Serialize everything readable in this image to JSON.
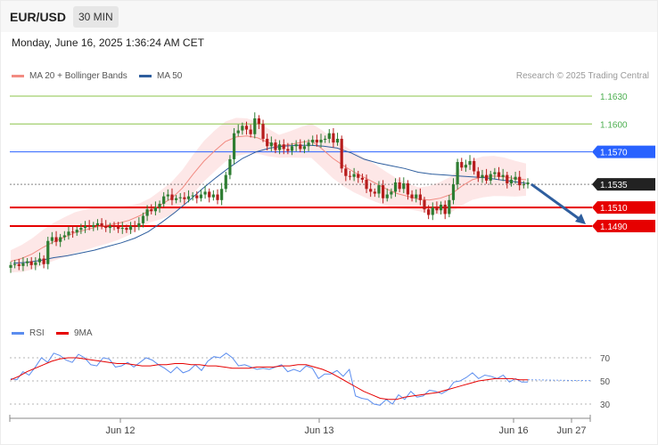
{
  "header": {
    "symbol": "EUR/USD",
    "timeframe": "30 MIN"
  },
  "datetime": "Monday, June 16, 2025 1:36:24 AM CET",
  "legend": {
    "bollinger_label": "MA 20 + Bollinger Bands",
    "ma50_label": "MA 50",
    "credit": "Research © 2025 Trading Central"
  },
  "rsi_legend": {
    "rsi_label": "RSI",
    "ma_label": "9MA"
  },
  "colors": {
    "bollinger": "#f28b82",
    "bollinger_fill": "#fde3e3",
    "ma50": "#2e5e9e",
    "candle_up": "#2e7d32",
    "candle_down": "#b71c1c",
    "support": "#e60000",
    "resistance_green": "#8bc34a",
    "pivot_blue": "#2962ff",
    "current_price": "#333333",
    "arrow": "#2e5e9e",
    "rsi": "#5b8def",
    "rsi_ma": "#e60000"
  },
  "chart_data": [
    {
      "type": "candlestick",
      "title": "EUR/USD",
      "ylim": [
        1.144,
        1.164
      ],
      "x_ticks": [
        "Jun 12",
        "Jun 13",
        "Jun 16",
        "Jun 27"
      ],
      "y_levels": [
        {
          "value": 1.163,
          "label": "1.1630",
          "style": "resistance_green"
        },
        {
          "value": 1.16,
          "label": "1.1600",
          "style": "resistance_green"
        },
        {
          "value": 1.157,
          "label": "1.1570",
          "style": "pivot_blue"
        },
        {
          "value": 1.1535,
          "label": "1.1535",
          "style": "current_price"
        },
        {
          "value": 1.151,
          "label": "1.1510",
          "style": "support"
        },
        {
          "value": 1.149,
          "label": "1.1490",
          "style": "support"
        }
      ],
      "closes": [
        1.1448,
        1.1449,
        1.1447,
        1.145,
        1.1452,
        1.1448,
        1.1451,
        1.1455,
        1.1449,
        1.1474,
        1.1478,
        1.1473,
        1.1478,
        1.148,
        1.1484,
        1.1483,
        1.1486,
        1.1488,
        1.149,
        1.1489,
        1.1491,
        1.1493,
        1.149,
        1.1488,
        1.149,
        1.1489,
        1.1487,
        1.1488,
        1.1486,
        1.149,
        1.1489,
        1.1493,
        1.1501,
        1.1508,
        1.1506,
        1.151,
        1.1514,
        1.1522,
        1.1524,
        1.1518,
        1.152,
        1.1521,
        1.1519,
        1.1522,
        1.1523,
        1.152,
        1.1524,
        1.1527,
        1.1521,
        1.1524,
        1.1518,
        1.153,
        1.1545,
        1.1562,
        1.159,
        1.1593,
        1.1598,
        1.1594,
        1.1589,
        1.1606,
        1.16,
        1.1584,
        1.1576,
        1.158,
        1.1572,
        1.1578,
        1.1573,
        1.1571,
        1.1576,
        1.1578,
        1.1573,
        1.1576,
        1.158,
        1.1583,
        1.158,
        1.1583,
        1.1584,
        1.159,
        1.158,
        1.1584,
        1.1552,
        1.1544,
        1.1543,
        1.1546,
        1.1542,
        1.154,
        1.153,
        1.1527,
        1.1525,
        1.1534,
        1.152,
        1.1524,
        1.1527,
        1.1537,
        1.153,
        1.1536,
        1.1524,
        1.152,
        1.1524,
        1.1518,
        1.1508,
        1.1502,
        1.151,
        1.1507,
        1.1513,
        1.1503,
        1.1518,
        1.1535,
        1.1559,
        1.1553,
        1.1556,
        1.156,
        1.1549,
        1.1542,
        1.1545,
        1.1539,
        1.1546,
        1.1548,
        1.1543,
        1.1545,
        1.1536,
        1.154,
        1.1543,
        1.1534,
        1.1535,
        1.1537
      ],
      "series": [
        {
          "name": "MA 20 + Bollinger Bands",
          "values": [
            1.1452,
            1.1455,
            1.146,
            1.1467,
            1.1473,
            1.1478,
            1.1483,
            1.1486,
            1.1489,
            1.1491,
            1.1493,
            1.1496,
            1.1501,
            1.1507,
            1.1513,
            1.152,
            1.1531,
            1.1546,
            1.156,
            1.1571,
            1.1581,
            1.1586,
            1.1587,
            1.1585,
            1.158,
            1.1576,
            1.1578,
            1.158,
            1.1582,
            1.1573,
            1.1563,
            1.1555,
            1.1548,
            1.1542,
            1.1536,
            1.153,
            1.1525,
            1.1522,
            1.1519,
            1.1518,
            1.152,
            1.1524,
            1.1533,
            1.154,
            1.1543,
            1.1544,
            1.1543,
            1.1541,
            1.154
          ]
        },
        {
          "name": "MA 50",
          "values": [
            1.145,
            1.1451,
            1.1453,
            1.1456,
            1.1458,
            1.1461,
            1.1464,
            1.1468,
            1.1472,
            1.1477,
            1.1484,
            1.1494,
            1.1505,
            1.1517,
            1.153,
            1.1542,
            1.1553,
            1.1563,
            1.157,
            1.1574,
            1.1576,
            1.1577,
            1.1577,
            1.1576,
            1.1574,
            1.1569,
            1.1562,
            1.1558,
            1.1555,
            1.1552,
            1.1548,
            1.1546,
            1.1545,
            1.1544,
            1.1543,
            1.1542,
            1.154,
            1.1538,
            1.1536
          ]
        }
      ]
    },
    {
      "type": "line",
      "title": "RSI",
      "ylim": [
        20,
        80
      ],
      "y_ticks": [
        70,
        50,
        30
      ],
      "series": [
        {
          "name": "RSI",
          "values": [
            52,
            51,
            58,
            55,
            62,
            70,
            66,
            74,
            72,
            68,
            66,
            73,
            70,
            64,
            63,
            70,
            69,
            62,
            63,
            66,
            62,
            66,
            70,
            68,
            64,
            61,
            57,
            62,
            57,
            59,
            64,
            59,
            67,
            71,
            70,
            74,
            70,
            63,
            64,
            62,
            60,
            61,
            60,
            62,
            64,
            58,
            60,
            58,
            63,
            61,
            52,
            56,
            56,
            59,
            54,
            60,
            37,
            35,
            34,
            30,
            29,
            34,
            30,
            38,
            34,
            41,
            36,
            37,
            42,
            41,
            39,
            42,
            49,
            50,
            53,
            57,
            52,
            55,
            54,
            52,
            55,
            49,
            52,
            49,
            49
          ]
        },
        {
          "name": "9MA",
          "values": [
            51,
            54,
            58,
            61,
            64,
            67,
            69,
            70,
            70,
            69,
            68,
            67,
            66,
            65,
            65,
            64,
            63,
            63,
            64,
            64,
            65,
            65,
            64,
            64,
            63,
            63,
            62,
            61,
            61,
            61,
            62,
            62,
            62,
            63,
            63,
            64,
            64,
            62,
            60,
            57,
            53,
            49,
            45,
            41,
            38,
            35,
            34,
            34,
            36,
            37,
            38,
            39,
            40,
            42,
            44,
            46,
            48,
            50,
            51,
            52,
            52,
            52,
            51,
            51
          ]
        }
      ]
    }
  ]
}
